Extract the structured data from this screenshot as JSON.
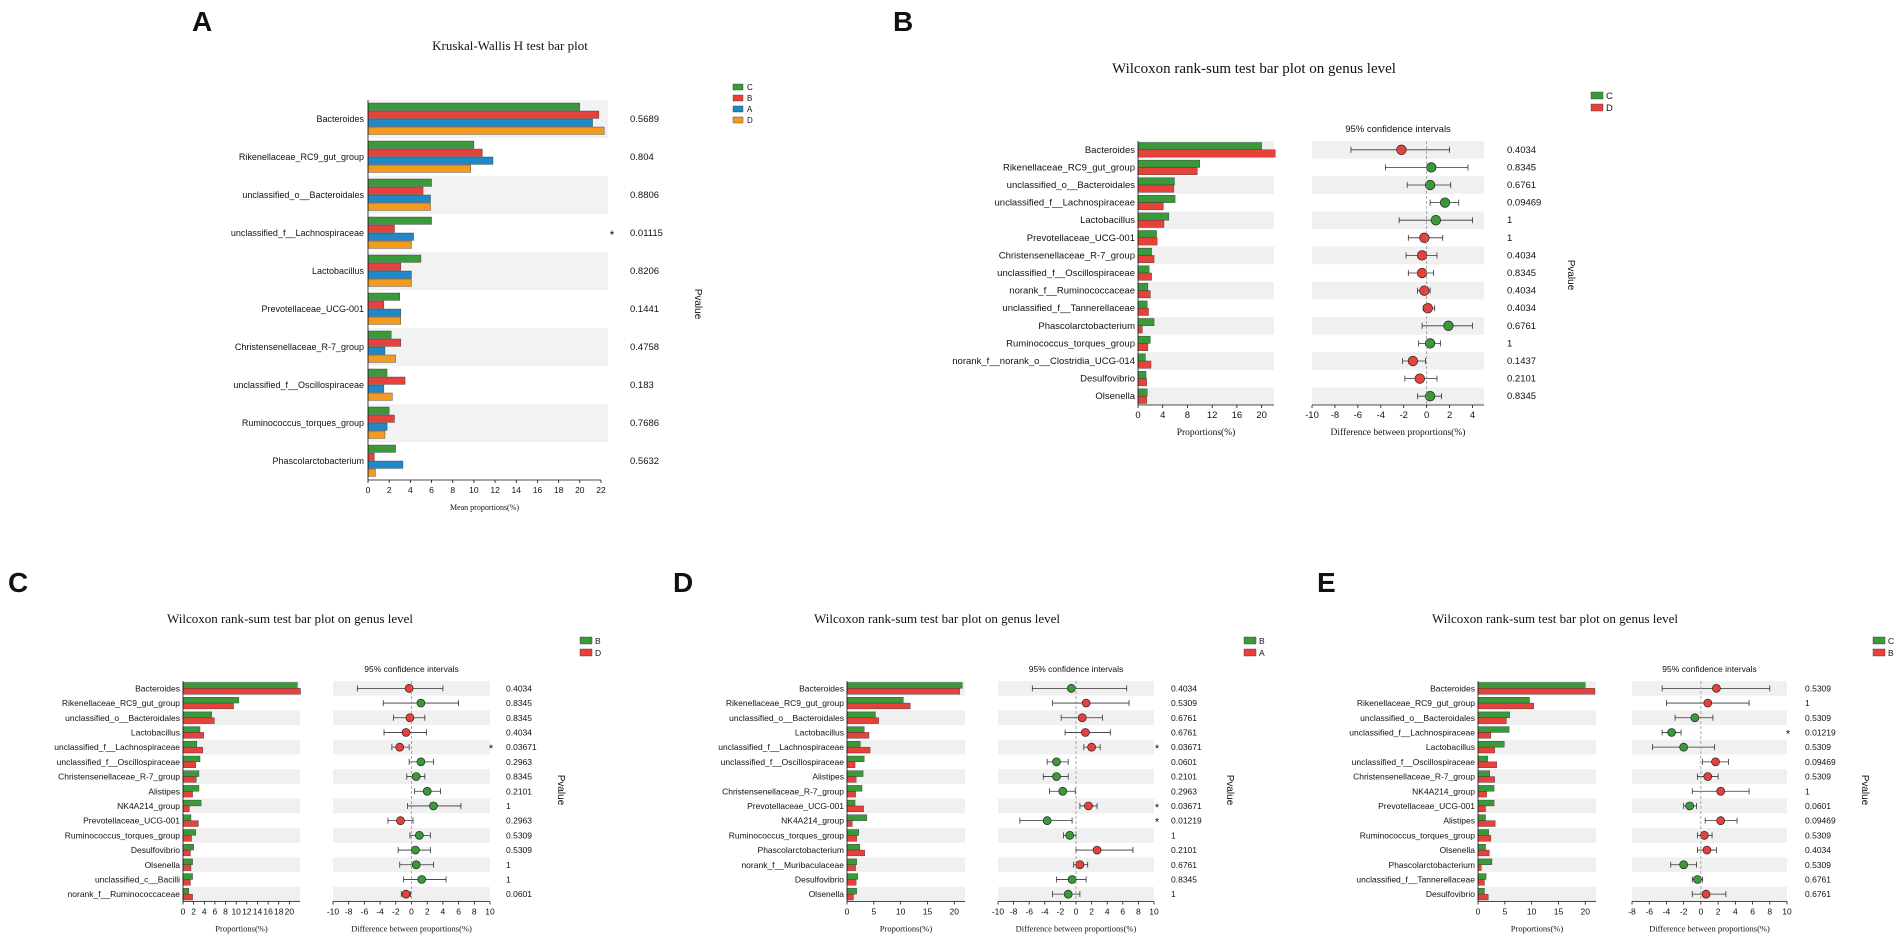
{
  "figure": {
    "description_panels": [
      "A",
      "B",
      "C",
      "D",
      "E"
    ]
  },
  "chart_data": [
    {
      "panel": "A",
      "type": "bar",
      "title": "Kruskal-Wallis H test bar plot",
      "xlabel": "Mean proportions(%)",
      "pvalue_label": "Pvalue",
      "xlim": [
        0,
        22
      ],
      "ticks": [
        0,
        2,
        4,
        6,
        8,
        10,
        12,
        14,
        16,
        18,
        20,
        22
      ],
      "categories": [
        "Bacteroides",
        "Rikenellaceae_RC9_gut_group",
        "unclassified_o__Bacteroidales",
        "unclassified_f__Lachnospiraceae",
        "Lactobacillus",
        "Prevotellaceae_UCG-001",
        "Christensenellaceae_R-7_group",
        "unclassified_f__Oscillospiraceae",
        "Ruminococcus_torques_group",
        "Phascolarctobacterium"
      ],
      "series": [
        {
          "name": "C",
          "color": "#3a9a3a",
          "values": [
            20.0,
            10.0,
            6.0,
            6.0,
            5.0,
            3.0,
            2.2,
            1.8,
            2.0,
            2.6
          ]
        },
        {
          "name": "B",
          "color": "#e8413c",
          "values": [
            21.8,
            10.8,
            5.2,
            2.5,
            3.1,
            1.5,
            3.1,
            3.5,
            2.5,
            0.6
          ]
        },
        {
          "name": "A",
          "color": "#1f88c8",
          "values": [
            21.2,
            11.8,
            5.9,
            4.3,
            4.1,
            3.1,
            1.6,
            1.5,
            1.8,
            3.3
          ]
        },
        {
          "name": "D",
          "color": "#f29b1d",
          "values": [
            22.3,
            9.7,
            5.9,
            4.1,
            4.1,
            3.1,
            2.6,
            2.3,
            1.6,
            0.7
          ]
        }
      ],
      "pvalues": [
        "0.5689",
        "0.804",
        "0.8806",
        "0.01115",
        "0.8206",
        "0.1441",
        "0.4758",
        "0.183",
        "0.7686",
        "0.5632"
      ],
      "significant": [
        false,
        false,
        false,
        true,
        false,
        false,
        false,
        false,
        false,
        false
      ],
      "sig_mark": "*"
    },
    {
      "panel": "B",
      "type": "bar+errorbar",
      "title": "Wilcoxon rank-sum test bar plot on genus level",
      "ci_title": "95% confidence intervals",
      "xlabel_left": "Proportions(%)",
      "xlabel_right": "Difference between proportions(%)",
      "pvalue_label": "Pvalue",
      "bar_xlim": [
        0,
        22
      ],
      "bar_ticks": [
        0,
        4,
        8,
        12,
        16,
        20
      ],
      "diff_xlim": [
        -10,
        5
      ],
      "diff_ticks": [
        -10,
        -8,
        -6,
        -4,
        -2,
        0,
        2,
        4
      ],
      "groups": [
        {
          "name": "C",
          "color": "#3a9a3a"
        },
        {
          "name": "D",
          "color": "#e8413c"
        }
      ],
      "categories": [
        "Bacteroides",
        "Rikenellaceae_RC9_gut_group",
        "unclassified_o__Bacteroidales",
        "unclassified_f__Lachnospiraceae",
        "Lactobacillus",
        "Prevotellaceae_UCG-001",
        "Christensenellaceae_R-7_group",
        "unclassified_f__Oscillospiraceae",
        "norank_f__Ruminococcaceae",
        "unclassified_f__Tannerellaceae",
        "Phascolarctobacterium",
        "Ruminococcus_torques_group",
        "norank_f__norank_o__Clostridia_UCG-014",
        "Desulfovibrio",
        "Olsenella"
      ],
      "values_g1": [
        20.0,
        10.0,
        5.9,
        6.0,
        5.0,
        3.0,
        2.2,
        1.8,
        1.6,
        1.5,
        2.6,
        2.0,
        1.2,
        1.3,
        1.5
      ],
      "values_g2": [
        22.2,
        9.6,
        5.8,
        4.1,
        4.2,
        3.1,
        2.6,
        2.2,
        2.0,
        1.7,
        0.7,
        1.6,
        2.1,
        1.4,
        1.4
      ],
      "diff": [
        -2.2,
        0.4,
        0.3,
        1.6,
        0.8,
        -0.2,
        -0.4,
        -0.4,
        -0.2,
        0.1,
        1.9,
        0.3,
        -1.2,
        -0.6,
        0.3
      ],
      "ci_low": [
        -6.6,
        -3.6,
        -1.7,
        0.3,
        -2.4,
        -1.6,
        -1.8,
        -1.6,
        -0.8,
        -0.3,
        -0.4,
        -0.7,
        -2.1,
        -1.9,
        -0.8
      ],
      "ci_high": [
        2.0,
        3.6,
        2.1,
        2.8,
        4.0,
        1.4,
        0.9,
        0.6,
        0.3,
        0.7,
        4.0,
        1.2,
        -0.1,
        0.9,
        1.3
      ],
      "dot_group": [
        "D",
        "C",
        "C",
        "C",
        "C",
        "D",
        "D",
        "D",
        "D",
        "D",
        "C",
        "C",
        "D",
        "D",
        "C"
      ],
      "pvalues": [
        "0.4034",
        "0.8345",
        "0.6761",
        "0.09469",
        "1",
        "1",
        "0.4034",
        "0.8345",
        "0.4034",
        "0.4034",
        "0.6761",
        "1",
        "0.1437",
        "0.2101",
        "0.8345"
      ],
      "significant": [
        false,
        false,
        false,
        false,
        false,
        false,
        false,
        false,
        false,
        false,
        false,
        false,
        false,
        false,
        false
      ],
      "sig_mark": "*"
    },
    {
      "panel": "C",
      "type": "bar+errorbar",
      "title": "Wilcoxon rank-sum test bar plot on genus level",
      "ci_title": "95% confidence intervals",
      "xlabel_left": "Proportions(%)",
      "xlabel_right": "Difference between proportions(%)",
      "pvalue_label": "Pvalue",
      "bar_xlim": [
        0,
        22
      ],
      "bar_ticks": [
        0,
        2,
        4,
        6,
        8,
        10,
        12,
        14,
        16,
        18,
        20
      ],
      "diff_xlim": [
        -10,
        10
      ],
      "diff_ticks": [
        -10,
        -8,
        -6,
        -4,
        -2,
        0,
        2,
        4,
        6,
        8,
        10
      ],
      "groups": [
        {
          "name": "B",
          "color": "#3a9a3a"
        },
        {
          "name": "D",
          "color": "#e8413c"
        }
      ],
      "categories": [
        "Bacteroides",
        "Rikenellaceae_RC9_gut_group",
        "unclassified_o__Bacteroidales",
        "Lactobacillus",
        "unclassified_f__Lachnospiraceae",
        "unclassified_f__Oscillospiraceae",
        "Christensenellaceae_R-7_group",
        "Alistipes",
        "NK4A214_group",
        "Prevotellaceae_UCG-001",
        "Ruminococcus_torques_group",
        "Desulfovibrio",
        "Olsenella",
        "unclassified_c__Bacilli",
        "norank_f__Ruminococcaceae"
      ],
      "values_g1": [
        21.5,
        10.5,
        5.4,
        3.2,
        2.6,
        3.2,
        3.0,
        3.0,
        3.4,
        1.5,
        2.4,
        2.0,
        1.8,
        1.8,
        1.1
      ],
      "values_g2": [
        22.1,
        9.5,
        5.9,
        3.9,
        3.7,
        2.4,
        2.5,
        1.8,
        1.2,
        2.9,
        1.6,
        1.4,
        1.5,
        1.4,
        1.8
      ],
      "diff": [
        -0.3,
        1.2,
        -0.2,
        -0.7,
        -1.5,
        1.2,
        0.6,
        2.0,
        2.8,
        -1.4,
        1.0,
        0.5,
        0.6,
        1.3,
        -0.7
      ],
      "ci_low": [
        -6.9,
        -3.6,
        -2.3,
        -3.5,
        -2.5,
        -0.3,
        -0.6,
        0.4,
        -0.5,
        -3.0,
        -0.2,
        -1.7,
        -1.5,
        -1.0,
        -1.3
      ],
      "ci_high": [
        4.0,
        6.0,
        1.7,
        1.9,
        -0.3,
        2.8,
        1.7,
        3.7,
        6.3,
        0.2,
        2.4,
        2.4,
        2.8,
        4.4,
        -0.1
      ],
      "dot_group": [
        "D",
        "B",
        "D",
        "D",
        "D",
        "B",
        "B",
        "B",
        "B",
        "D",
        "B",
        "B",
        "B",
        "B",
        "D"
      ],
      "pvalues": [
        "0.4034",
        "0.8345",
        "0.8345",
        "0.4034",
        "0.03671",
        "0.2963",
        "0.8345",
        "0.2101",
        "1",
        "0.2963",
        "0.5309",
        "0.5309",
        "1",
        "1",
        "0.0601"
      ],
      "significant": [
        false,
        false,
        false,
        false,
        true,
        false,
        false,
        false,
        false,
        false,
        false,
        false,
        false,
        false,
        false
      ],
      "sig_mark": "*"
    },
    {
      "panel": "D",
      "type": "bar+errorbar",
      "title": "Wilcoxon rank-sum test bar plot on genus level",
      "ci_title": "95% confidence intervals",
      "xlabel_left": "Proportions(%)",
      "xlabel_right": "Difference between proportions(%)",
      "pvalue_label": "Pvalue",
      "bar_xlim": [
        0,
        22
      ],
      "bar_ticks": [
        0,
        5,
        10,
        15,
        20
      ],
      "diff_xlim": [
        -10,
        10
      ],
      "diff_ticks": [
        -10,
        -8,
        -6,
        -4,
        -2,
        0,
        2,
        4,
        6,
        8,
        10
      ],
      "groups": [
        {
          "name": "B",
          "color": "#3a9a3a"
        },
        {
          "name": "A",
          "color": "#e8413c"
        }
      ],
      "categories": [
        "Bacteroides",
        "Rikenellaceae_RC9_gut_group",
        "unclassified_o__Bacteroidales",
        "Lactobacillus",
        "unclassified_f__Lachnospiraceae",
        "unclassified_f__Oscillospiraceae",
        "Alistipes",
        "Christensenellaceae_R-7_group",
        "Prevotellaceae_UCG-001",
        "NK4A214_group",
        "Ruminococcus_torques_group",
        "Phascolarctobacterium",
        "norank_f__Muribaculaceae",
        "Desulfovibrio",
        "Olsenella"
      ],
      "values_g1": [
        21.5,
        10.5,
        5.3,
        3.2,
        2.5,
        3.2,
        3.0,
        2.8,
        1.5,
        3.7,
        2.2,
        2.4,
        1.8,
        2.0,
        1.8
      ],
      "values_g2": [
        21.0,
        11.8,
        5.9,
        4.1,
        4.3,
        1.5,
        1.7,
        1.6,
        3.1,
        1.0,
        1.8,
        3.3,
        1.6,
        1.7,
        1.2
      ],
      "diff": [
        -0.6,
        1.3,
        0.8,
        1.2,
        2.0,
        -2.5,
        -2.5,
        -1.7,
        1.6,
        -3.7,
        -0.8,
        2.7,
        0.5,
        -0.5,
        -1.0
      ],
      "ci_low": [
        -5.6,
        -3.0,
        -1.9,
        -1.4,
        1.0,
        -3.7,
        -4.2,
        -3.4,
        0.5,
        -7.2,
        -1.6,
        0.0,
        -0.3,
        -2.5,
        -3.0
      ],
      "ci_high": [
        6.5,
        6.8,
        3.4,
        4.4,
        3.1,
        -1.0,
        -1.0,
        -0.1,
        2.7,
        -0.5,
        0.0,
        7.3,
        1.5,
        1.3,
        0.5
      ],
      "dot_group": [
        "B",
        "A",
        "A",
        "A",
        "A",
        "B",
        "B",
        "B",
        "A",
        "B",
        "B",
        "A",
        "A",
        "B",
        "B"
      ],
      "pvalues": [
        "0.4034",
        "0.5309",
        "0.6761",
        "0.6761",
        "0.03671",
        "0.0601",
        "0.2101",
        "0.2963",
        "0.03671",
        "0.01219",
        "1",
        "0.2101",
        "0.6761",
        "0.8345",
        "1"
      ],
      "significant": [
        false,
        false,
        false,
        false,
        true,
        false,
        false,
        false,
        true,
        true,
        false,
        false,
        false,
        false,
        false
      ],
      "sig_mark": "*"
    },
    {
      "panel": "E",
      "type": "bar+errorbar",
      "title": "Wilcoxon rank-sum test bar plot on genus level",
      "ci_title": "95% confidence intervals",
      "xlabel_left": "Proportions(%)",
      "xlabel_right": "Difference between proportions(%)",
      "pvalue_label": "Pvalue",
      "bar_xlim": [
        0,
        22
      ],
      "bar_ticks": [
        0,
        5,
        10,
        15,
        20
      ],
      "diff_xlim": [
        -8,
        10
      ],
      "diff_ticks": [
        -8,
        -6,
        -4,
        -2,
        0,
        2,
        4,
        6,
        8,
        10
      ],
      "groups": [
        {
          "name": "C",
          "color": "#3a9a3a"
        },
        {
          "name": "B",
          "color": "#e8413c"
        }
      ],
      "categories": [
        "Bacteroides",
        "Rikenellaceae_RC9_gut_group",
        "unclassified_o__Bacteroidales",
        "unclassified_f__Lachnospiraceae",
        "Lactobacillus",
        "unclassified_f__Oscillospiraceae",
        "Christensenellaceae_R-7_group",
        "NK4A214_group",
        "Prevotellaceae_UCG-001",
        "Alistipes",
        "Ruminococcus_torques_group",
        "Olsenella",
        "Phascolarctobacterium",
        "unclassified_f__Tannerellaceae",
        "Desulfovibrio"
      ],
      "values_g1": [
        20.0,
        9.6,
        5.9,
        5.8,
        4.9,
        1.8,
        2.2,
        3.0,
        3.0,
        1.4,
        2.0,
        1.4,
        2.6,
        1.5,
        1.2
      ],
      "values_g2": [
        21.8,
        10.4,
        5.3,
        2.4,
        3.1,
        3.5,
        3.1,
        1.6,
        1.4,
        3.2,
        2.4,
        2.1,
        0.6,
        1.2,
        1.9
      ],
      "diff": [
        1.8,
        0.8,
        -0.7,
        -3.4,
        -2.0,
        1.7,
        0.8,
        2.3,
        -1.3,
        2.3,
        0.4,
        0.7,
        -2.0,
        -0.4,
        0.6
      ],
      "ci_low": [
        -4.5,
        -4.0,
        -3.0,
        -4.5,
        -5.6,
        0.2,
        -0.4,
        -1.0,
        -2.0,
        0.5,
        -0.4,
        -0.4,
        -3.5,
        -1.0,
        -1.0
      ],
      "ci_high": [
        8.0,
        5.6,
        1.4,
        -2.3,
        1.6,
        3.2,
        2.0,
        5.6,
        -0.5,
        4.2,
        1.3,
        1.8,
        -0.5,
        0.2,
        2.9
      ],
      "dot_group": [
        "B",
        "B",
        "C",
        "C",
        "C",
        "B",
        "B",
        "B",
        "C",
        "B",
        "B",
        "B",
        "C",
        "C",
        "B"
      ],
      "pvalues": [
        "0.5309",
        "1",
        "0.5309",
        "0.01219",
        "0.5309",
        "0.09469",
        "0.5309",
        "1",
        "0.0601",
        "0.09469",
        "0.5309",
        "0.4034",
        "0.5309",
        "0.6761",
        "0.6761"
      ],
      "significant": [
        false,
        false,
        false,
        true,
        false,
        false,
        false,
        false,
        false,
        false,
        false,
        false,
        false,
        false,
        false
      ],
      "sig_mark": "*"
    }
  ]
}
